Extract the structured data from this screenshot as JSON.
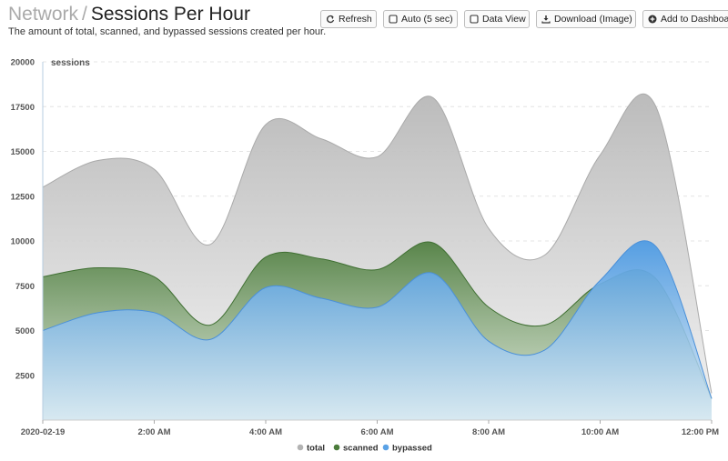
{
  "header": {
    "breadcrumb": "Network",
    "separator": "/",
    "title": "Sessions Per Hour",
    "subtitle": "The amount of total, scanned, and bypassed sessions created per hour."
  },
  "toolbar": {
    "refresh_label": "Refresh",
    "auto_label": "Auto (5 sec)",
    "dataview_label": "Data View",
    "download_label": "Download (Image)",
    "dashboard_label": "Add to Dashboard"
  },
  "colors": {
    "total": "#b3b3b3",
    "scanned": "#4b7c3b",
    "bypassed": "#5aa2e6"
  },
  "chart_data": {
    "type": "area",
    "ylabel": "sessions",
    "ylim": [
      0,
      20000
    ],
    "yticks": [
      2500,
      5000,
      7500,
      10000,
      12500,
      15000,
      17500,
      20000
    ],
    "x_range_hours": [
      0,
      12
    ],
    "x_tick_hours": [
      0,
      2,
      4,
      6,
      8,
      10,
      12
    ],
    "x_tick_labels": [
      "2020-02-19",
      "2:00 AM",
      "4:00 AM",
      "6:00 AM",
      "8:00 AM",
      "10:00 AM",
      "12:00 PM"
    ],
    "x": [
      0,
      1,
      2,
      3,
      4,
      5,
      6,
      7,
      8,
      9,
      10,
      11,
      12
    ],
    "grid": true,
    "legend_position": "bottom",
    "series": [
      {
        "name": "total",
        "values": [
          13000,
          14500,
          14000,
          9800,
          16500,
          15700,
          14700,
          18000,
          10700,
          9200,
          14800,
          17500,
          1500
        ]
      },
      {
        "name": "scanned",
        "values": [
          8000,
          8500,
          8000,
          5300,
          9100,
          9000,
          8400,
          9900,
          6300,
          5300,
          7600,
          7900,
          1200
        ]
      },
      {
        "name": "bypassed",
        "values": [
          5000,
          6000,
          6000,
          4500,
          7400,
          6800,
          6300,
          8200,
          4400,
          3900,
          7800,
          9700,
          1200
        ]
      }
    ]
  }
}
